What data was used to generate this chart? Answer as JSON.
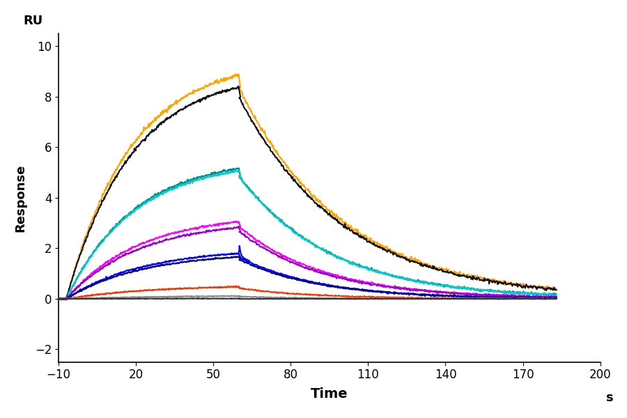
{
  "xlabel": "Time",
  "ylabel": "Response",
  "ru_label": "RU",
  "s_label": "s",
  "xlim": [
    -10,
    200
  ],
  "ylim": [
    -2.5,
    10.5
  ],
  "xticks": [
    -10,
    20,
    50,
    80,
    110,
    140,
    170,
    200
  ],
  "yticks": [
    -2,
    0,
    2,
    4,
    6,
    8,
    10
  ],
  "t_start": -7,
  "t_inject_end": 60,
  "t_end": 183,
  "curves": [
    {
      "color": "#FFA500",
      "rmax": 9.5,
      "ka": 0.04,
      "kd": 0.025,
      "noise": 0.04,
      "inject_drop": 0.5
    },
    {
      "color": "#111111",
      "rmax": 9.0,
      "ka": 0.04,
      "kd": 0.025,
      "noise": 0.03,
      "inject_drop": 0.4
    },
    {
      "color": "#008B8B",
      "rmax": 5.6,
      "ka": 0.038,
      "kd": 0.028,
      "noise": 0.025,
      "inject_drop": 0.3
    },
    {
      "color": "#00CCCC",
      "rmax": 5.5,
      "ka": 0.038,
      "kd": 0.028,
      "noise": 0.025,
      "inject_drop": 0.25
    },
    {
      "color": "#FF00FF",
      "rmax": 3.35,
      "ka": 0.036,
      "kd": 0.03,
      "noise": 0.02,
      "inject_drop": 0.2
    },
    {
      "color": "#9900CC",
      "rmax": 3.1,
      "ka": 0.036,
      "kd": 0.03,
      "noise": 0.02,
      "inject_drop": 0.15
    },
    {
      "color": "#0000FF",
      "rmax": 2.0,
      "ka": 0.034,
      "kd": 0.032,
      "noise": 0.015,
      "inject_drop": 0.15
    },
    {
      "color": "#000088",
      "rmax": 1.85,
      "ka": 0.034,
      "kd": 0.032,
      "noise": 0.015,
      "inject_drop": 0.1
    },
    {
      "color": "#FF3300",
      "rmax": 0.55,
      "ka": 0.03,
      "kd": 0.035,
      "noise": 0.012,
      "inject_drop": 0.05
    },
    {
      "color": "#888888",
      "rmax": 0.15,
      "ka": 0.02,
      "kd": 0.04,
      "noise": 0.008,
      "inject_drop": 0.02
    },
    {
      "color": "#333333",
      "rmax": 0.02,
      "ka": 0.01,
      "kd": 0.05,
      "noise": 0.005,
      "inject_drop": 0.01
    }
  ],
  "background_color": "#FFFFFF",
  "lw": 1.5
}
